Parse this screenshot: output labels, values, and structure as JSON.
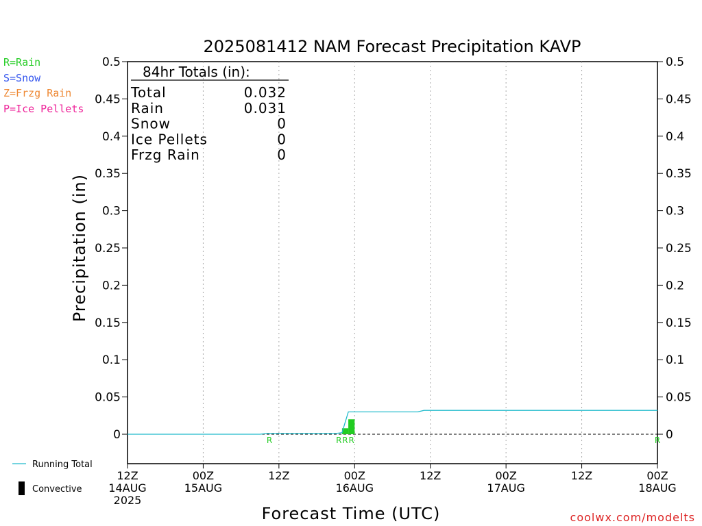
{
  "legend_types": [
    {
      "label": "R=Rain",
      "color": "#22cc22"
    },
    {
      "label": "S=Snow",
      "color": "#3355ee"
    },
    {
      "label": "Z=Frzg Rain",
      "color": "#ee8833"
    },
    {
      "label": "P=Ice Pellets",
      "color": "#ee2299"
    }
  ],
  "totals_box": {
    "heading": "84hr Totals (in):",
    "rows": [
      {
        "label": "Total",
        "value": "0.032"
      },
      {
        "label": "Rain",
        "value": "0.031"
      },
      {
        "label": "Snow",
        "value": "0"
      },
      {
        "label": "Ice Pellets",
        "value": "0"
      },
      {
        "label": "Frzg Rain",
        "value": "0"
      }
    ]
  },
  "bottom_legend": {
    "running_total_label": "Running Total",
    "convective_label": "Convective"
  },
  "credit": "coolwx.com/modelts",
  "chart_data": {
    "type": "bar",
    "title": "2025081412 NAM Forecast Precipitation KAVP",
    "xlabel": "Forecast Time (UTC)",
    "ylabel": "Precipitation (in)",
    "ylim": [
      0,
      0.5
    ],
    "xlim": [
      0,
      84
    ],
    "yticks": [
      "0",
      "0.05",
      "0.1",
      "0.15",
      "0.2",
      "0.25",
      "0.3",
      "0.35",
      "0.4",
      "0.45",
      "0.5"
    ],
    "xticks": [
      {
        "hour": 0,
        "lines": [
          "12Z",
          "14AUG",
          "2025"
        ]
      },
      {
        "hour": 12,
        "lines": [
          "00Z",
          "15AUG"
        ]
      },
      {
        "hour": 24,
        "lines": [
          "12Z"
        ]
      },
      {
        "hour": 36,
        "lines": [
          "00Z",
          "16AUG"
        ]
      },
      {
        "hour": 48,
        "lines": [
          "12Z"
        ]
      },
      {
        "hour": 60,
        "lines": [
          "00Z",
          "17AUG"
        ]
      },
      {
        "hour": 72,
        "lines": [
          "12Z"
        ]
      },
      {
        "hour": 84,
        "lines": [
          "00Z",
          "18AUG"
        ]
      }
    ],
    "grid": "vertical dotted at 12-hourly ticks",
    "series": [
      {
        "name": "Running Total",
        "color": "#22bbcc",
        "points": [
          [
            0,
            0
          ],
          [
            21,
            0
          ],
          [
            22,
            0.001
          ],
          [
            33,
            0.001
          ],
          [
            34,
            0.002
          ],
          [
            35,
            0.03
          ],
          [
            46,
            0.03
          ],
          [
            47,
            0.032
          ],
          [
            84,
            0.032
          ]
        ]
      }
    ],
    "bars": [
      {
        "start": 34,
        "end": 35,
        "value": 0.008,
        "type": "rain"
      },
      {
        "start": 35,
        "end": 36,
        "value": 0.02,
        "type": "rain"
      }
    ],
    "precip_type_markers": [
      {
        "hour": 22.5,
        "label": "R"
      },
      {
        "hour": 33.5,
        "label": "R"
      },
      {
        "hour": 34.5,
        "label": "R"
      },
      {
        "hour": 35.5,
        "label": "R"
      },
      {
        "hour": 84,
        "label": "R"
      }
    ],
    "marker_color": "#22cc22"
  }
}
